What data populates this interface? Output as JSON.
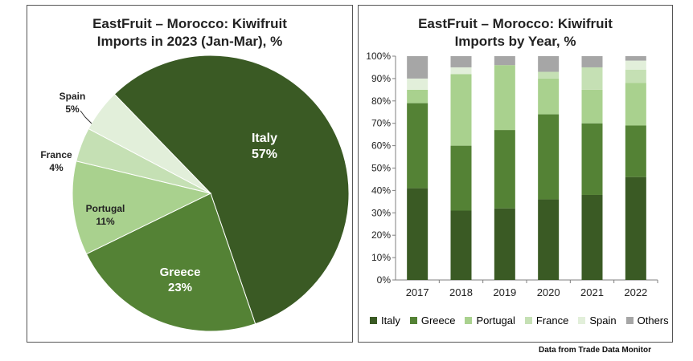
{
  "chart_data": [
    {
      "type": "pie",
      "title_line1": "EastFruit – Morocco: Kiwifruit",
      "title_line2": "Imports in 2023 (Jan-Mar), %",
      "slices": [
        {
          "label": "Italy",
          "value": 57,
          "value_label": "57%",
          "color": "#3a5a24"
        },
        {
          "label": "Greece",
          "value": 23,
          "value_label": "23%",
          "color": "#548235"
        },
        {
          "label": "Portugal",
          "value": 11,
          "value_label": "11%",
          "color": "#a9d18e"
        },
        {
          "label": "France",
          "value": 4,
          "value_label": "4%",
          "color": "#c5e0b4"
        },
        {
          "label": "Spain",
          "value": 5,
          "value_label": "5%",
          "color": "#e2efda"
        }
      ]
    },
    {
      "type": "bar",
      "stacked": true,
      "percent": true,
      "title_line1": "EastFruit – Morocco: Kiwifruit",
      "title_line2": "Imports by Year, %",
      "categories": [
        "2017",
        "2018",
        "2019",
        "2020",
        "2021",
        "2022"
      ],
      "y_ticks": [
        "0%",
        "10%",
        "20%",
        "30%",
        "40%",
        "50%",
        "60%",
        "70%",
        "80%",
        "90%",
        "100%"
      ],
      "ylim": [
        0,
        100
      ],
      "grid": false,
      "legend_position": "bottom",
      "series": [
        {
          "name": "Italy",
          "color": "#3a5a24",
          "values": [
            41,
            31,
            32,
            36,
            38,
            46
          ]
        },
        {
          "name": "Greece",
          "color": "#548235",
          "values": [
            38,
            29,
            35,
            38,
            32,
            23
          ]
        },
        {
          "name": "Portugal",
          "color": "#a9d18e",
          "values": [
            6,
            32,
            29,
            16,
            15,
            19
          ]
        },
        {
          "name": "France",
          "color": "#c5e0b4",
          "values": [
            0,
            0,
            0,
            3,
            10,
            6
          ]
        },
        {
          "name": "Spain",
          "color": "#e2efda",
          "values": [
            5,
            3,
            0,
            0,
            0,
            4
          ]
        },
        {
          "name": "Others",
          "color": "#a6a6a6",
          "values": [
            10,
            5,
            4,
            7,
            5,
            2
          ]
        }
      ]
    }
  ],
  "source_note": "Data from Trade Data Monitor"
}
